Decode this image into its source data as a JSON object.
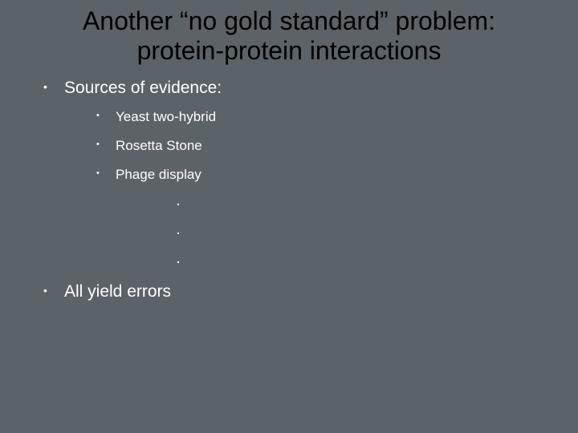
{
  "background_color": "#5b6268",
  "title_color": "#000000",
  "text_color": "#ffffff",
  "title_fontsize": 32,
  "level1_fontsize": 21,
  "level2_fontsize": 17,
  "title": "Another “no gold standard” problem: protein-protein interactions",
  "bullets": {
    "item1": "Sources of evidence:",
    "sub1": "Yeast two-hybrid",
    "sub2": "Rosetta Stone",
    "sub3": "Phage display",
    "dot1": ".",
    "dot2": ".",
    "dot3": ".",
    "item2": "All yield errors"
  }
}
